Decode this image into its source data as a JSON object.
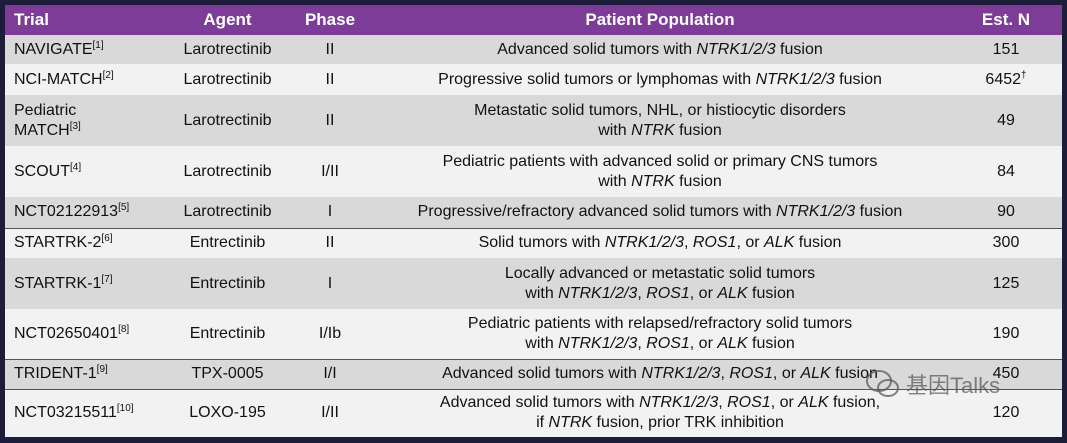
{
  "header": [
    "Trial",
    "Agent",
    "Phase",
    "Patient Population",
    "Est. N"
  ],
  "rows": [
    {
      "trial": [
        "NAVIGATE"
      ],
      "ref": "[1]",
      "agent": "Larotrectinib",
      "phase": "II",
      "population": [
        [
          {
            "text": "Advanced solid tumors with "
          },
          {
            "italic": "NTRK1/2/3"
          },
          {
            "text": " fusion"
          }
        ]
      ],
      "n": 151
    },
    {
      "trial": [
        "NCI-MATCH"
      ],
      "ref": "[2]",
      "agent": "Larotrectinib",
      "phase": "II",
      "population": [
        [
          {
            "text": "Progressive solid tumors or lymphomas with "
          },
          {
            "italic": "NTRK1/2/3"
          },
          {
            "text": " fusion"
          }
        ]
      ],
      "n": 6452,
      "note": "†"
    },
    {
      "trial": [
        "Pediatric",
        "MATCH"
      ],
      "ref": "[3]",
      "agent": "Larotrectinib",
      "phase": "II",
      "population": [
        [
          {
            "text": "Metastatic solid tumors, NHL, or histiocytic disorders"
          }
        ],
        [
          {
            "text": "with "
          },
          {
            "italic": "NTRK"
          },
          {
            "text": " fusion"
          }
        ]
      ],
      "n": 49
    },
    {
      "trial": [
        "SCOUT"
      ],
      "ref": "[4]",
      "agent": "Larotrectinib",
      "phase": "I/II",
      "population": [
        [
          {
            "text": "Pediatric patients with advanced solid or primary CNS tumors"
          }
        ],
        [
          {
            "text": "with "
          },
          {
            "italic": "NTRK"
          },
          {
            "text": " fusion"
          }
        ]
      ],
      "n": 84
    },
    {
      "trial": [
        "NCT02122913"
      ],
      "ref": "[5]",
      "agent": "Larotrectinib",
      "phase": "I",
      "population": [
        [
          {
            "text": "Progressive/refractory advanced solid tumors with "
          },
          {
            "italic": "NTRK1/2/3"
          },
          {
            "text": " fusion"
          }
        ]
      ],
      "n": 90
    },
    {
      "trial": [
        "STARTRK-2"
      ],
      "ref": "[6]",
      "agent": "Entrectinib",
      "phase": "II",
      "population": [
        [
          {
            "text": "Solid tumors with "
          },
          {
            "italic": "NTRK1/2/3"
          },
          {
            "text": ", "
          },
          {
            "italic": "ROS1"
          },
          {
            "text": ", or "
          },
          {
            "italic": "ALK"
          },
          {
            "text": " fusion"
          }
        ]
      ],
      "n": 300
    },
    {
      "trial": [
        "STARTRK-1"
      ],
      "ref": "[7]",
      "agent": "Entrectinib",
      "phase": "I",
      "population": [
        [
          {
            "text": "Locally advanced or metastatic solid tumors"
          }
        ],
        [
          {
            "text": "with "
          },
          {
            "italic": "NTRK1/2/3"
          },
          {
            "text": ", "
          },
          {
            "italic": "ROS1"
          },
          {
            "text": ", or "
          },
          {
            "italic": "ALK"
          },
          {
            "text": " fusion"
          }
        ]
      ],
      "n": 125
    },
    {
      "trial": [
        "NCT02650401"
      ],
      "ref": "[8]",
      "agent": "Entrectinib",
      "phase": "I/Ib",
      "population": [
        [
          {
            "text": "Pediatric patients with relapsed/refractory solid tumors"
          }
        ],
        [
          {
            "text": "with "
          },
          {
            "italic": "NTRK1/2/3"
          },
          {
            "text": ", "
          },
          {
            "italic": "ROS1"
          },
          {
            "text": ", or "
          },
          {
            "italic": "ALK"
          },
          {
            "text": " fusion"
          }
        ]
      ],
      "n": 190
    },
    {
      "trial": [
        "TRIDENT-1"
      ],
      "ref": "[9]",
      "agent": "TPX-0005",
      "phase": "I/I",
      "population": [
        [
          {
            "text": "Advanced solid tumors with "
          },
          {
            "italic": "NTRK1/2/3"
          },
          {
            "text": ", "
          },
          {
            "italic": "ROS1"
          },
          {
            "text": ", or "
          },
          {
            "italic": "ALK"
          },
          {
            "text": " fusion"
          }
        ]
      ],
      "n": 450
    },
    {
      "trial": [
        "NCT03215511"
      ],
      "ref": "[10]",
      "agent": "LOXO-195",
      "phase": "I/II",
      "population": [
        [
          {
            "text": "Advanced solid tumors with "
          },
          {
            "italic": "NTRK1/2/3"
          },
          {
            "text": ", "
          },
          {
            "italic": "ROS1"
          },
          {
            "text": ", or "
          },
          {
            "italic": "ALK"
          },
          {
            "text": " fusion,"
          }
        ],
        [
          {
            "text": "if "
          },
          {
            "italic": "NTRK"
          },
          {
            "text": " fusion, prior TRK inhibition"
          }
        ]
      ],
      "n": 120
    }
  ],
  "watermark": "基因Talks"
}
